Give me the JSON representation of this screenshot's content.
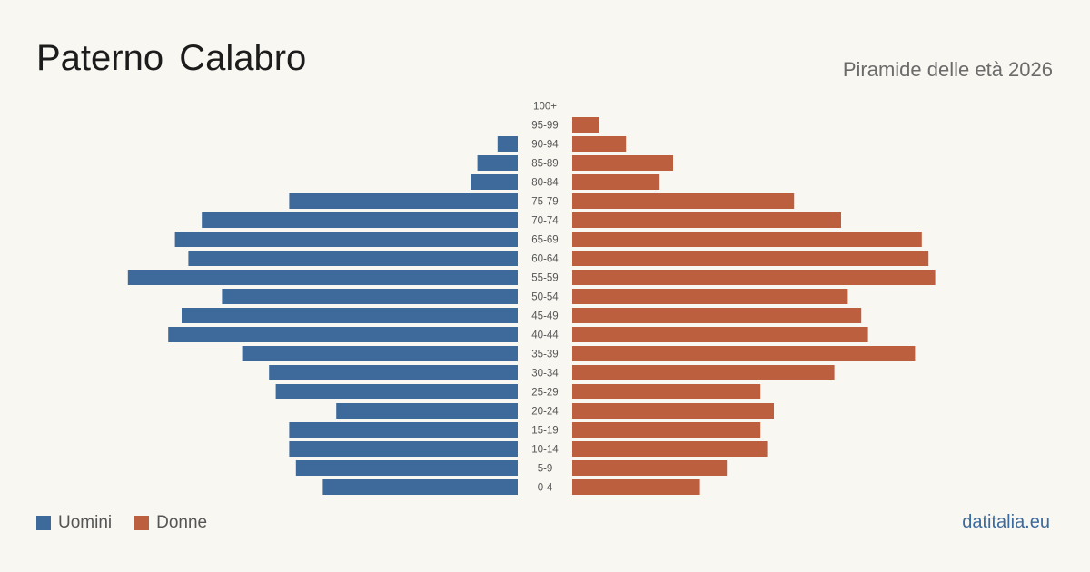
{
  "header": {
    "title": "Paterno Calabro",
    "subtitle": "Piramide delle età 2026"
  },
  "legend": {
    "men_label": "Uomini",
    "women_label": "Donne"
  },
  "footer": {
    "source": "datitalia.eu"
  },
  "colors": {
    "men": "#3d6a9a",
    "women": "#bb5f3e",
    "background": "#f9f7f2"
  },
  "chart_data": {
    "type": "bar",
    "orientation": "horizontal-pyramid",
    "categories": [
      "100+",
      "95-99",
      "90-94",
      "85-89",
      "80-84",
      "75-79",
      "70-74",
      "65-69",
      "60-64",
      "55-59",
      "50-54",
      "45-49",
      "40-44",
      "35-39",
      "30-34",
      "25-29",
      "20-24",
      "15-19",
      "10-14",
      "5-9",
      "0-4"
    ],
    "series": [
      {
        "name": "Uomini",
        "values": [
          0,
          0,
          3,
          6,
          7,
          34,
          47,
          51,
          49,
          58,
          44,
          50,
          52,
          41,
          37,
          36,
          27,
          34,
          34,
          33,
          29
        ]
      },
      {
        "name": "Donne",
        "values": [
          0,
          4,
          8,
          15,
          13,
          33,
          40,
          52,
          53,
          54,
          41,
          43,
          44,
          51,
          39,
          28,
          30,
          28,
          29,
          23,
          19
        ]
      }
    ],
    "legend": "bottom-left"
  }
}
